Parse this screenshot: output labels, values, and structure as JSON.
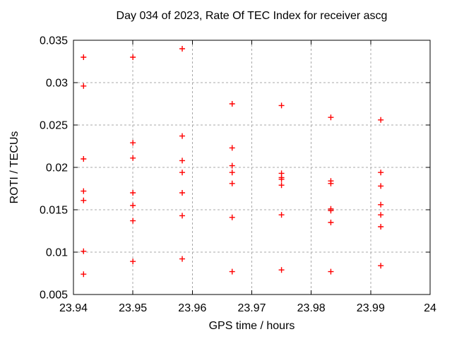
{
  "chart_data": {
    "type": "scatter",
    "title": "Day 034 of 2023, Rate Of TEC Index for receiver ascg",
    "xlabel": "GPS time / hours",
    "ylabel": "ROTI / TECUs",
    "xlim": [
      23.94,
      24
    ],
    "ylim": [
      0.005,
      0.035
    ],
    "grid": true,
    "legend": false,
    "marker": "plus",
    "marker_color": "#ff0000",
    "grid_color": "#a8a8a8",
    "border_color": "#000000",
    "background_color": "#ffffff",
    "xticks": [
      [
        23.94,
        "23.94"
      ],
      [
        23.95,
        "23.95"
      ],
      [
        23.96,
        "23.96"
      ],
      [
        23.97,
        "23.97"
      ],
      [
        23.98,
        "23.98"
      ],
      [
        23.99,
        "23.99"
      ],
      [
        24,
        "24"
      ]
    ],
    "yticks": [
      [
        0.005,
        "0.005"
      ],
      [
        0.01,
        "0.01"
      ],
      [
        0.015,
        "0.015"
      ],
      [
        0.02,
        "0.02"
      ],
      [
        0.025,
        "0.025"
      ],
      [
        0.03,
        "0.03"
      ],
      [
        0.035,
        "0.035"
      ]
    ],
    "points": [
      [
        23.9417,
        0.033
      ],
      [
        23.9417,
        0.0296
      ],
      [
        23.9417,
        0.021
      ],
      [
        23.9417,
        0.0172
      ],
      [
        23.9417,
        0.0161
      ],
      [
        23.9417,
        0.0101
      ],
      [
        23.9417,
        0.0074
      ],
      [
        23.95,
        0.033
      ],
      [
        23.95,
        0.0229
      ],
      [
        23.95,
        0.0211
      ],
      [
        23.95,
        0.017
      ],
      [
        23.95,
        0.0155
      ],
      [
        23.95,
        0.0137
      ],
      [
        23.95,
        0.0089
      ],
      [
        23.9583,
        0.034
      ],
      [
        23.9583,
        0.0237
      ],
      [
        23.9583,
        0.0208
      ],
      [
        23.9583,
        0.0194
      ],
      [
        23.9583,
        0.017
      ],
      [
        23.9583,
        0.0143
      ],
      [
        23.9583,
        0.0092
      ],
      [
        23.9667,
        0.0275
      ],
      [
        23.9667,
        0.0223
      ],
      [
        23.9667,
        0.0202
      ],
      [
        23.9667,
        0.0194
      ],
      [
        23.9667,
        0.0181
      ],
      [
        23.9667,
        0.0141
      ],
      [
        23.9667,
        0.0077
      ],
      [
        23.975,
        0.0273
      ],
      [
        23.975,
        0.0193
      ],
      [
        23.975,
        0.0188
      ],
      [
        23.975,
        0.0186
      ],
      [
        23.975,
        0.0179
      ],
      [
        23.975,
        0.0144
      ],
      [
        23.975,
        0.0079
      ],
      [
        23.9833,
        0.0259
      ],
      [
        23.9833,
        0.0184
      ],
      [
        23.9833,
        0.0181
      ],
      [
        23.9833,
        0.0151
      ],
      [
        23.9833,
        0.0149
      ],
      [
        23.9833,
        0.0135
      ],
      [
        23.9833,
        0.0077
      ],
      [
        23.9917,
        0.0256
      ],
      [
        23.9917,
        0.0194
      ],
      [
        23.9917,
        0.0178
      ],
      [
        23.9917,
        0.0156
      ],
      [
        23.9917,
        0.0144
      ],
      [
        23.9917,
        0.013
      ],
      [
        23.9917,
        0.0084
      ]
    ]
  }
}
